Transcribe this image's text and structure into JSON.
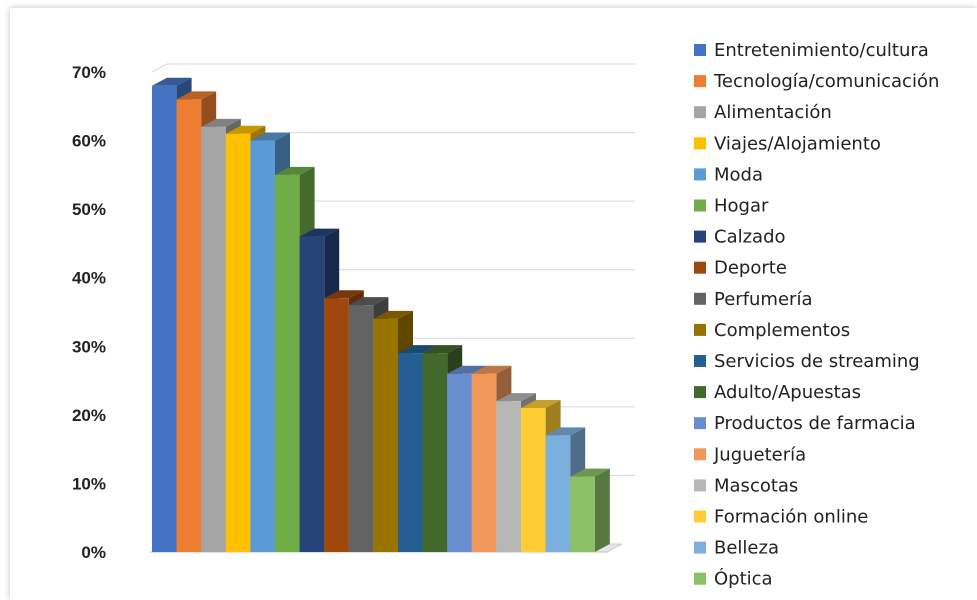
{
  "chart_data": {
    "type": "bar",
    "title": "",
    "xlabel": "",
    "ylabel": "",
    "ylim": [
      0,
      70
    ],
    "ytick_labels": [
      "0%",
      "10%",
      "20%",
      "30%",
      "40%",
      "50%",
      "60%",
      "70%"
    ],
    "grid": true,
    "legend_position": "right",
    "categories": [
      "Entretenimiento/cultura",
      "Tecnología/comunicación",
      "Alimentación",
      "Viajes/Alojamiento",
      "Moda",
      "Hogar",
      "Calzado",
      "Deporte",
      "Perfumería",
      "Complementos",
      "Servicios de streaming",
      "Adulto/Apuestas",
      "Productos de farmacia",
      "Juguetería",
      "Mascotas",
      "Formación online",
      "Belleza",
      "Óptica"
    ],
    "values": [
      68,
      66,
      62,
      61,
      60,
      55,
      46,
      37,
      36,
      34,
      29,
      29,
      26,
      26,
      22,
      21,
      17,
      11
    ],
    "colors": [
      "#4472C4",
      "#ED7D31",
      "#A5A5A5",
      "#FFC000",
      "#5B9BD5",
      "#70AD47",
      "#264478",
      "#9E480E",
      "#636363",
      "#997300",
      "#255E91",
      "#43682B",
      "#698ED0",
      "#F1975A",
      "#B7B7B7",
      "#FFCD33",
      "#7CAFDD",
      "#8CC168"
    ]
  }
}
